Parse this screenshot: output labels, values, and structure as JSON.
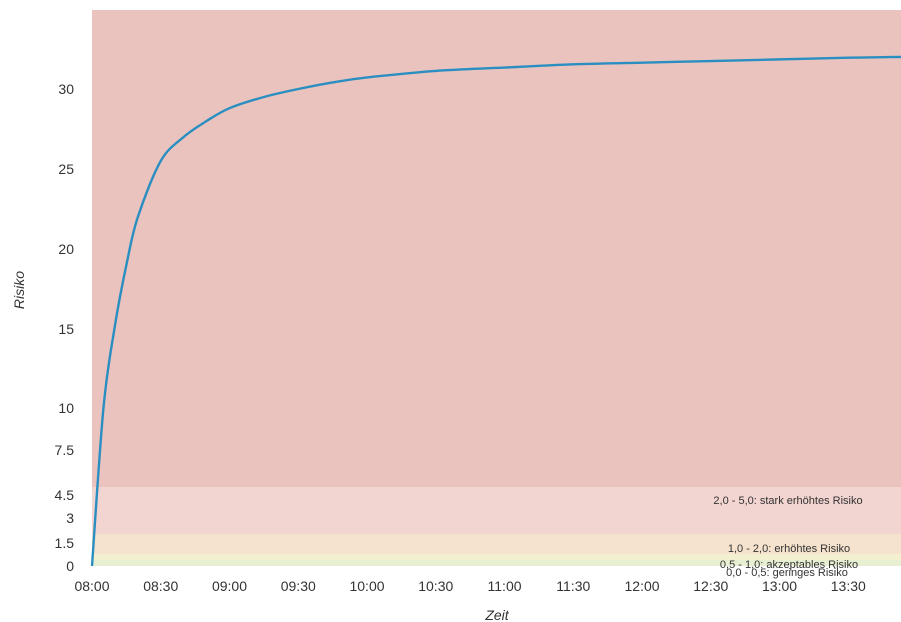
{
  "chart_data": {
    "type": "line",
    "xlabel": "Zeit",
    "ylabel": "Risiko",
    "x_ticks": [
      "08:00",
      "08:30",
      "09:00",
      "09:30",
      "10:00",
      "10:30",
      "11:00",
      "11:30",
      "12:00",
      "12:30",
      "13:00",
      "13:30"
    ],
    "y_ticks": [
      "0",
      "1.5",
      "3",
      "4.5",
      "7.5",
      "10",
      "15",
      "20",
      "25",
      "30"
    ],
    "xlim": [
      "08:00",
      "13:53"
    ],
    "grid": false,
    "bands": [
      {
        "label": "0,0 - 0,5: geringes Risiko",
        "from": 0,
        "to": 0.5,
        "color": "#e6efd2"
      },
      {
        "label": "0,5 - 1,0: akzeptables Risiko",
        "from": 0.5,
        "to": 1.0,
        "color": "#f3f0cf"
      },
      {
        "label": "1,0 - 2,0: erhöhtes Risiko",
        "from": 1.0,
        "to": 2.0,
        "color": "#f5e3cd"
      },
      {
        "label": "2,0 - 5,0: stark erhöhtes Risiko",
        "from": 2.0,
        "to": 5.0,
        "color": "#f2d4d0"
      },
      {
        "label": "",
        "from": 5.0,
        "to": 34.8,
        "color": "#eac3bf"
      }
    ],
    "series": [
      {
        "color": "#2a8fc0",
        "x": [
          "08:00",
          "08:05",
          "08:10",
          "08:15",
          "08:20",
          "08:30",
          "08:40",
          "08:50",
          "09:00",
          "09:15",
          "09:30",
          "09:45",
          "10:00",
          "10:30",
          "11:00",
          "11:30",
          "12:00",
          "12:30",
          "13:00",
          "13:30",
          "13:53"
        ],
        "y": [
          0,
          10,
          15.2,
          19,
          22,
          25.5,
          27,
          28,
          28.8,
          29.5,
          30,
          30.4,
          30.7,
          31.1,
          31.3,
          31.5,
          31.6,
          31.7,
          31.8,
          31.9,
          31.95
        ]
      }
    ]
  }
}
